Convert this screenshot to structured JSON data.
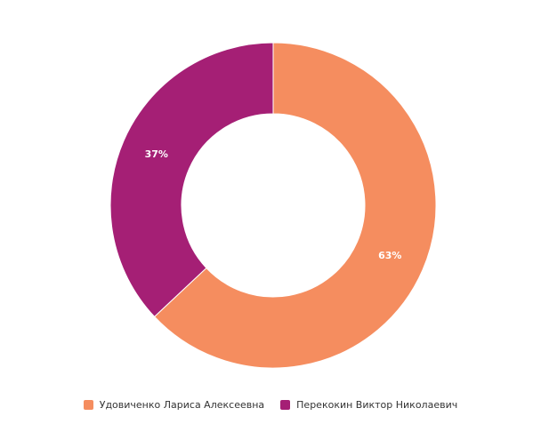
{
  "chart_data": {
    "type": "pie",
    "donut": true,
    "title": "",
    "legend_position": "bottom",
    "series": [
      {
        "name": "Удовиченко Лариса Алексеевна",
        "value": 63,
        "label": "63%",
        "color": "#f58d5f"
      },
      {
        "name": "Перекокин Виктор Николаевич",
        "value": 37,
        "label": "37%",
        "color": "#a51f75"
      }
    ]
  }
}
